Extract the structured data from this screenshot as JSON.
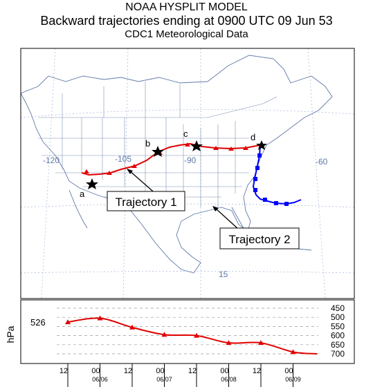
{
  "header": {
    "model": "NOAA HYSPLIT MODEL",
    "title": "Backward trajectories ending at 0900 UTC 09 Jun 53",
    "subtitle": "CDC1 Meteorological Data"
  },
  "map": {
    "longitude_labels": [
      "-120",
      "-105",
      "-90",
      "-60"
    ],
    "latitude_labels": [
      "15"
    ],
    "point_labels": [
      "a",
      "b",
      "c",
      "d"
    ],
    "callouts": {
      "trajectory1": "Trajectory 1",
      "trajectory2": "Trajectory 2"
    },
    "colors": {
      "trajectory1": "#e00000",
      "trajectory2": "#0000ff",
      "land": "#ffffff",
      "border": "#7a8fb5",
      "grid": "#9fb2d6"
    }
  },
  "profile": {
    "ylabel": "hPa",
    "start_value": "526",
    "pressure_ticks": [
      "450",
      "500",
      "550",
      "600",
      "650",
      "700"
    ],
    "time_ticks": [
      "12",
      "00",
      "12",
      "00",
      "12",
      "00",
      "12",
      "00"
    ],
    "date_labels": [
      "06/06",
      "06/07",
      "06/08",
      "06/09"
    ]
  },
  "chart_data": {
    "type": "line",
    "ylabel": "hPa",
    "y_reversed": true,
    "ylim": [
      450,
      700
    ],
    "x_ticks": [
      "12",
      "00",
      "12",
      "00",
      "12",
      "00",
      "12",
      "00"
    ],
    "x_dates": [
      "06/06",
      "06/07",
      "06/08",
      "06/09"
    ],
    "series": [
      {
        "name": "Trajectory 1",
        "values": [
          {
            "t": "06/05 12",
            "p": 526
          },
          {
            "t": "06/06 00",
            "p": 505
          },
          {
            "t": "06/06 12",
            "p": 555
          },
          {
            "t": "06/07 00",
            "p": 595
          },
          {
            "t": "06/07 12",
            "p": 600
          },
          {
            "t": "06/08 00",
            "p": 640
          },
          {
            "t": "06/08 12",
            "p": 640
          },
          {
            "t": "06/09 00",
            "p": 690
          },
          {
            "t": "06/09 09",
            "p": 700
          }
        ]
      }
    ]
  }
}
